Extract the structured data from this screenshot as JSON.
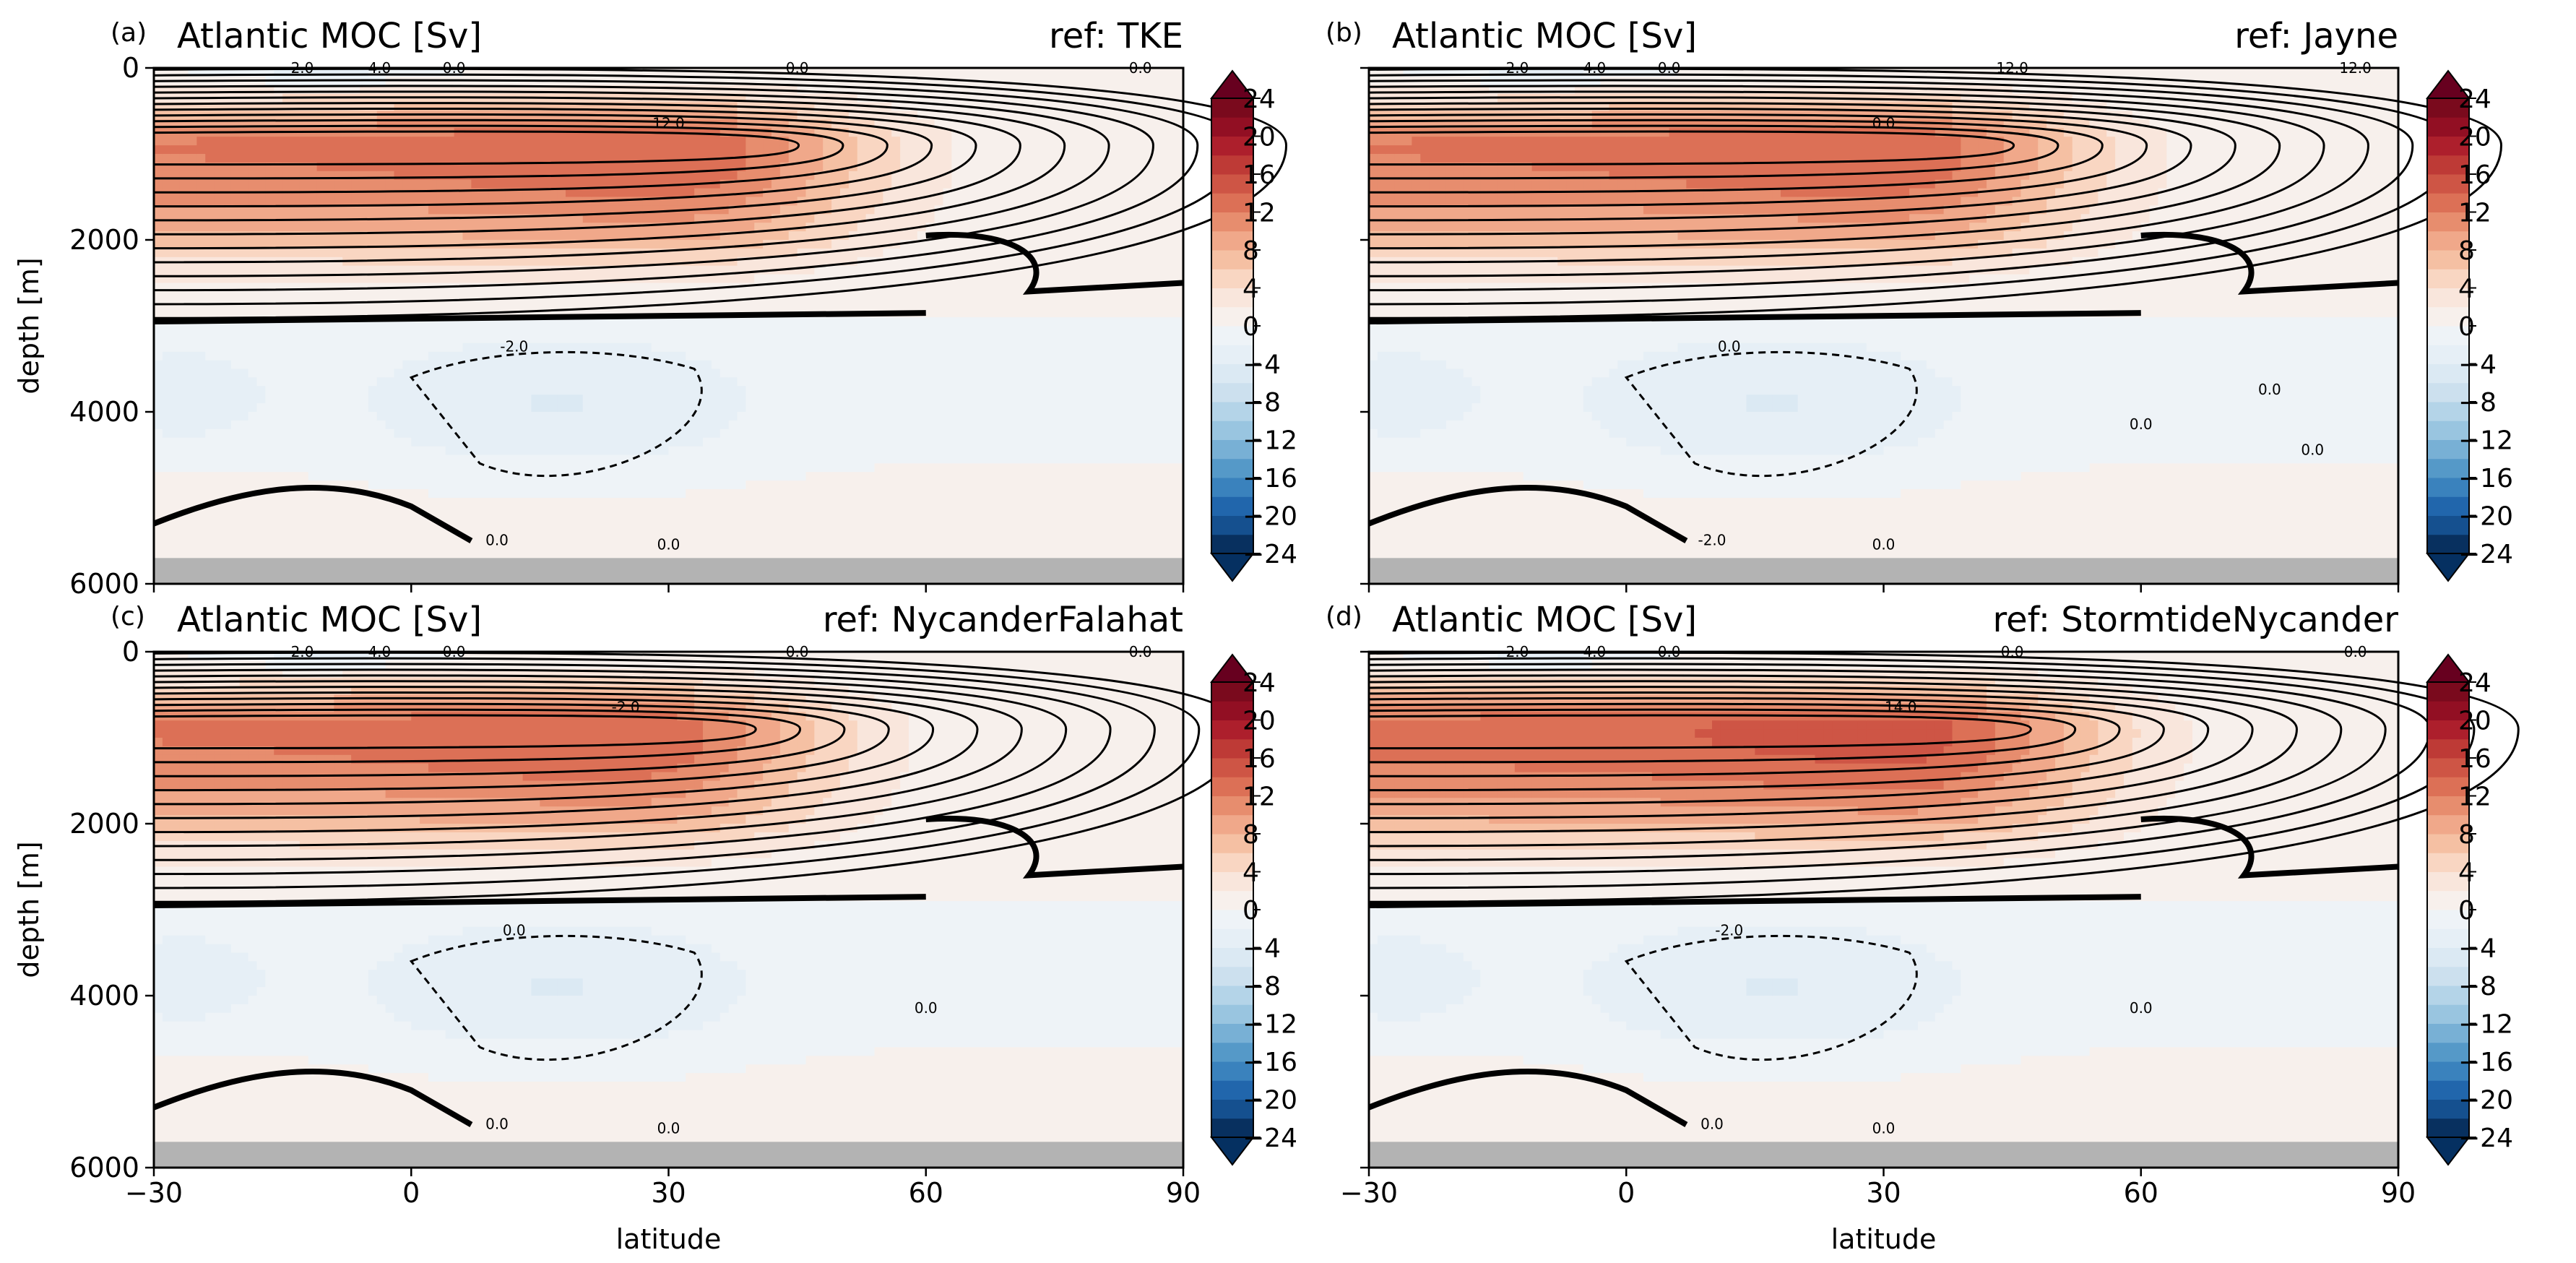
{
  "figure": {
    "axis_labels": {
      "ylabel": "depth [m]",
      "xlabel": "latitude"
    }
  },
  "colors": {
    "levels": [
      -24,
      -22,
      -20,
      -18,
      -16,
      -14,
      -12,
      -10,
      -8,
      -6,
      -4,
      -2,
      0,
      2,
      4,
      6,
      8,
      10,
      12,
      14,
      16,
      18,
      20,
      22,
      24
    ],
    "band_colors": [
      "#08305f",
      "#15508f",
      "#2166ac",
      "#3a82bd",
      "#5599c8",
      "#78b0d5",
      "#99c5e0",
      "#b4d4e8",
      "#cce0ee",
      "#dbe9f3",
      "#e6eff6",
      "#eef3f7",
      "#f7f0ec",
      "#f9e6dc",
      "#f9d6c2",
      "#f5c0a3",
      "#f0a88a",
      "#e78d6e",
      "#dc7056",
      "#ce5545",
      "#be3a36",
      "#ad1f2c",
      "#920f23",
      "#7a0a1d"
    ],
    "extend_low": "#053061",
    "extend_high": "#67001f",
    "ground": "#b3b3b3"
  },
  "chart_data": [
    {
      "type": "contour",
      "panel_label": "(a)",
      "title": "Atlantic MOC [Sv]",
      "reference": "ref: TKE",
      "x_ticks": [
        "−30",
        "0",
        "30",
        "60",
        "90"
      ],
      "y_ticks": [
        "0",
        "2000",
        "4000",
        "6000"
      ],
      "xlim": [
        -30,
        90
      ],
      "ylim": [
        6000,
        0
      ],
      "peak_value": 14,
      "peak_position": [
        30,
        900
      ],
      "upper_cell_bottom_depth": 2900,
      "lower_cell_min": -3,
      "contour_labels": [
        "-2.0",
        "-4.0",
        "0.0",
        "0.0",
        "0.0",
        "12.0",
        "-2.0",
        "0.0",
        "0.0"
      ],
      "colorbar_ticks": [
        "24",
        "20",
        "16",
        "12",
        "8",
        "4",
        "0",
        "−4",
        "−8",
        "−12",
        "−16",
        "−20",
        "−24"
      ]
    },
    {
      "type": "contour",
      "panel_label": "(b)",
      "title": "Atlantic MOC [Sv]",
      "reference": "ref: Jayne",
      "x_ticks": [
        "−30",
        "0",
        "30",
        "60",
        "90"
      ],
      "y_ticks": [
        "0",
        "2000",
        "4000",
        "6000"
      ],
      "xlim": [
        -30,
        90
      ],
      "ylim": [
        6000,
        0
      ],
      "peak_value": 14,
      "peak_position": [
        30,
        900
      ],
      "upper_cell_bottom_depth": 2900,
      "lower_cell_min": -3,
      "contour_labels": [
        "-2.0",
        "-4.0",
        "0.0",
        "12.0",
        "12.0",
        "0.0",
        "0.0",
        "-2.0",
        "0.0",
        "0.0",
        "0.0",
        "0.0"
      ],
      "colorbar_ticks": [
        "24",
        "20",
        "16",
        "12",
        "8",
        "4",
        "0",
        "−4",
        "−8",
        "−12",
        "−16",
        "−20",
        "−24"
      ]
    },
    {
      "type": "contour",
      "panel_label": "(c)",
      "title": "Atlantic MOC [Sv]",
      "reference": "ref: NycanderFalahat",
      "x_ticks": [
        "−30",
        "0",
        "30",
        "60",
        "90"
      ],
      "y_ticks": [
        "0",
        "2000",
        "4000",
        "6000"
      ],
      "xlim": [
        -30,
        90
      ],
      "ylim": [
        6000,
        0
      ],
      "peak_value": 14,
      "peak_position": [
        25,
        900
      ],
      "upper_cell_bottom_depth": 2900,
      "lower_cell_min": -3,
      "contour_labels": [
        "-2.0",
        "-4.0",
        "0.0",
        "0.0",
        "0.0",
        "-2.0",
        "0.0",
        "0.0",
        "0.0",
        "0.0"
      ],
      "colorbar_ticks": [
        "24",
        "20",
        "16",
        "12",
        "8",
        "4",
        "0",
        "−4",
        "−8",
        "−12",
        "−16",
        "−20",
        "−24"
      ]
    },
    {
      "type": "contour",
      "panel_label": "(d)",
      "title": "Atlantic MOC [Sv]",
      "reference": "ref: StormtideNycander",
      "x_ticks": [
        "−30",
        "0",
        "30",
        "60",
        "90"
      ],
      "y_ticks": [
        "0",
        "2000",
        "4000",
        "6000"
      ],
      "xlim": [
        -30,
        90
      ],
      "ylim": [
        6000,
        0
      ],
      "peak_value": 15,
      "peak_position": [
        32,
        900
      ],
      "upper_cell_bottom_depth": 2900,
      "lower_cell_min": -3,
      "contour_labels": [
        "-2.0",
        "-4.0",
        "0.0",
        "0.0",
        "0.0",
        "14.0",
        "-2.0",
        "0.0",
        "0.0",
        "0.0"
      ],
      "colorbar_ticks": [
        "24",
        "20",
        "16",
        "12",
        "8",
        "4",
        "0",
        "−4",
        "−8",
        "−12",
        "−16",
        "−20",
        "−24"
      ]
    }
  ]
}
